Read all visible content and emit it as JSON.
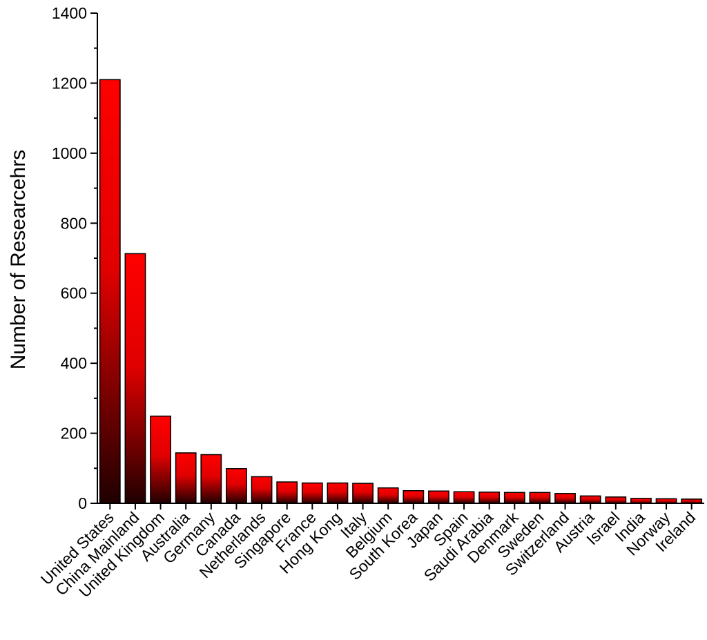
{
  "chart_data": {
    "type": "bar",
    "title": "",
    "xlabel": "",
    "ylabel": "Number of Researcehrs",
    "ylim": [
      0,
      1400
    ],
    "yticks": [
      0,
      200,
      400,
      600,
      800,
      1000,
      1200,
      1400
    ],
    "grid": false,
    "legend": "none",
    "colors": {
      "bar_top": "#ff0000",
      "bar_bottom": "#200000",
      "axis": "#000000"
    },
    "categories": [
      "United States",
      "China Mainland",
      "United Kingdom",
      "Australia",
      "Germany",
      "Canada",
      "Netherlands",
      "Singapore",
      "France",
      "Hong Kong",
      "Italy",
      "Belgium",
      "South Korea",
      "Japan",
      "Spain",
      "Saudi Arabia",
      "Denmark",
      "Sweden",
      "Switzerland",
      "Austria",
      "Israel",
      "India",
      "Norway",
      "Ireland"
    ],
    "values": [
      1210,
      713,
      249,
      144,
      139,
      99,
      76,
      61,
      58,
      58,
      57,
      44,
      36,
      35,
      33,
      32,
      31,
      31,
      28,
      21,
      18,
      14,
      13,
      12
    ]
  }
}
